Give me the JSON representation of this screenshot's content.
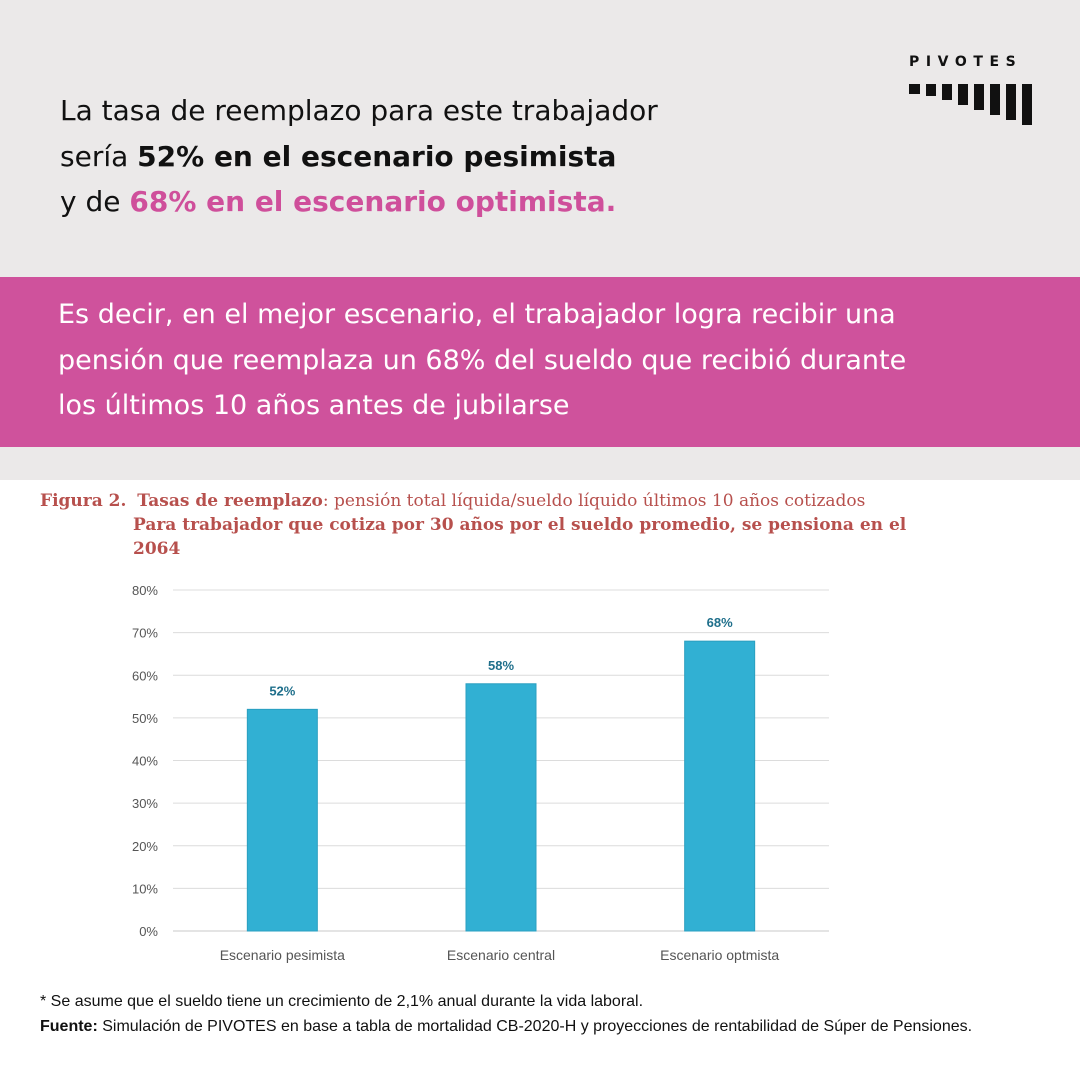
{
  "headline": {
    "line1": "La tasa de reemplazo para este trabajador",
    "line2_prefix": "sería ",
    "line2_bold": "52% en el escenario pesimista",
    "line3_prefix": "y de ",
    "line3_highlight": "68% en el escenario optimista."
  },
  "logo": {
    "text": "PIVOTES"
  },
  "band": {
    "line1": "Es decir, en el mejor escenario, el trabajador logra recibir una",
    "line2": "pensión que reemplaza un 68% del sueldo que recibió durante",
    "line3": "los últimos 10 años antes de jubilarse"
  },
  "figure": {
    "label": "Figura 2.",
    "title_bold": "Tasas de reemplazo",
    "title_rest": ": pensión total líquida/sueldo líquido últimos 10 años cotizados",
    "subtitle_line1": "Para trabajador que cotiza por 30 años por el sueldo promedio, se pensiona en el",
    "subtitle_line2": "2064"
  },
  "chart_data": {
    "type": "bar",
    "categories": [
      "Escenario pesimista",
      "Escenario central",
      "Escenario optmista"
    ],
    "values": [
      52,
      58,
      68
    ],
    "data_labels": [
      "52%",
      "58%",
      "68%"
    ],
    "yticks": [
      "0%",
      "10%",
      "20%",
      "30%",
      "40%",
      "50%",
      "60%",
      "70%",
      "80%"
    ],
    "ylim": [
      0,
      80
    ],
    "grid": true,
    "bar_color": "#31b0d3",
    "label_color": "#1f6f8b"
  },
  "footnote": {
    "note": "* Se asume que el sueldo tiene un crecimiento de 2,1% anual durante la vida laboral.",
    "source_label": "Fuente:",
    "source_text": " Simulación de PIVOTES en base a tabla de mortalidad CB-2020-H y proyecciones de rentabilidad de Súper de Pensiones."
  }
}
